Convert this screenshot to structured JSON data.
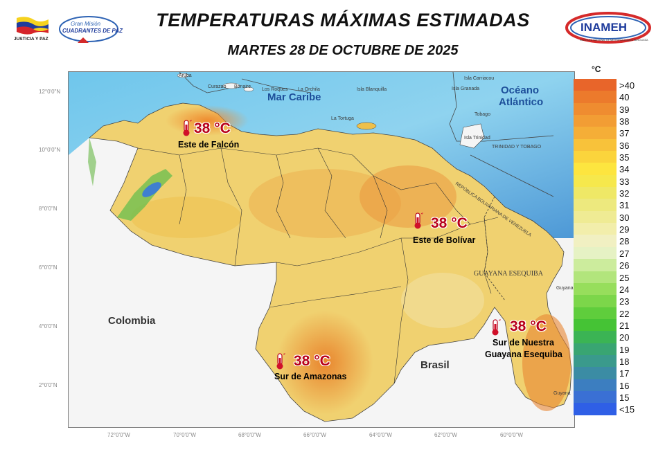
{
  "header": {
    "title": "TEMPERATURAS MÁXIMAS ESTIMADAS",
    "subtitle": "MARTES 28 DE OCTUBRE DE 2025"
  },
  "logos": {
    "left_1_text": "JUSTICIA Y PAZ",
    "left_2_line1": "Gran Misión",
    "left_2_line2": "CUADRANTES DE PAZ",
    "right_text": "INAMEH",
    "right_sub": "INSTITUTO NACIONAL DE METEOROLOGÍA E HIDROLOGÍA"
  },
  "map": {
    "sea_labels": {
      "caribe": "Mar Caribe",
      "atlantico_1": "Océano",
      "atlantico_2": "Atlántico"
    },
    "countries": {
      "colombia": "Colombia",
      "brasil": "Brasil",
      "guayana": "GUAYANA ESEQUIBA"
    },
    "boundary_labels": {
      "trinidad": "TRINIDAD Y TOBAGO",
      "republica": "REPÚBLICA BOLIVARIANA DE VENEZUELA"
    },
    "latitudes": [
      "12°0'0\"N",
      "10°0'0\"N",
      "8°0'0\"N",
      "6°0'0\"N",
      "4°0'0\"N",
      "2°0'0\"N"
    ],
    "longitudes": [
      "72°0'0\"W",
      "70°0'0\"W",
      "68°0'0\"W",
      "66°0'0\"W",
      "64°0'0\"W",
      "62°0'0\"W",
      "60°0'0\"W"
    ],
    "callouts": [
      {
        "temp": "38 °C",
        "region": "Este de Falcón"
      },
      {
        "temp": "38 °C",
        "region": "Este de Bolívar"
      },
      {
        "temp": "38 °C",
        "region": "Sur de Amazonas"
      },
      {
        "temp": "38 °C",
        "region_line1": "Sur de Nuestra",
        "region_line2": "Guayana Esequiba"
      }
    ],
    "islands": [
      "Aruba",
      "Curazao",
      "Bonaire",
      "Los Roques",
      "La Orchila",
      "Isla Blanquilla",
      "La Tortuga",
      "Isla Carriacou",
      "Isla Granada",
      "Tobago",
      "Isla Trinidad"
    ],
    "guyana_label": "Guyana",
    "suriname_label": "Guyana"
  },
  "legend": {
    "unit": "°C",
    "items": [
      {
        "label": ">40",
        "color": "#e8652a"
      },
      {
        "label": "40",
        "color": "#ec7a2c"
      },
      {
        "label": "39",
        "color": "#ef8c30"
      },
      {
        "label": "38",
        "color": "#f29d34"
      },
      {
        "label": "37",
        "color": "#f5ae37"
      },
      {
        "label": "36",
        "color": "#f8c23a"
      },
      {
        "label": "35",
        "color": "#fbd43c"
      },
      {
        "label": "34",
        "color": "#fde53f"
      },
      {
        "label": "33",
        "color": "#f6e84c"
      },
      {
        "label": "32",
        "color": "#efe866"
      },
      {
        "label": "31",
        "color": "#ede97e"
      },
      {
        "label": "30",
        "color": "#efeb94"
      },
      {
        "label": "29",
        "color": "#f2eeab"
      },
      {
        "label": "28",
        "color": "#f1f0c2"
      },
      {
        "label": "27",
        "color": "#e6f2c4"
      },
      {
        "label": "26",
        "color": "#ccec9d"
      },
      {
        "label": "25",
        "color": "#b2e57c"
      },
      {
        "label": "24",
        "color": "#97de5c"
      },
      {
        "label": "23",
        "color": "#7cd64a"
      },
      {
        "label": "22",
        "color": "#5fcd3c"
      },
      {
        "label": "21",
        "color": "#45c335"
      },
      {
        "label": "20",
        "color": "#3bb454"
      },
      {
        "label": "19",
        "color": "#39a572"
      },
      {
        "label": "18",
        "color": "#3a9a8c"
      },
      {
        "label": "17",
        "color": "#3b8ca4"
      },
      {
        "label": "16",
        "color": "#3c7ec0"
      },
      {
        "label": "15",
        "color": "#3a70d4"
      },
      {
        "label": "<15",
        "color": "#2f5fe6"
      }
    ]
  }
}
